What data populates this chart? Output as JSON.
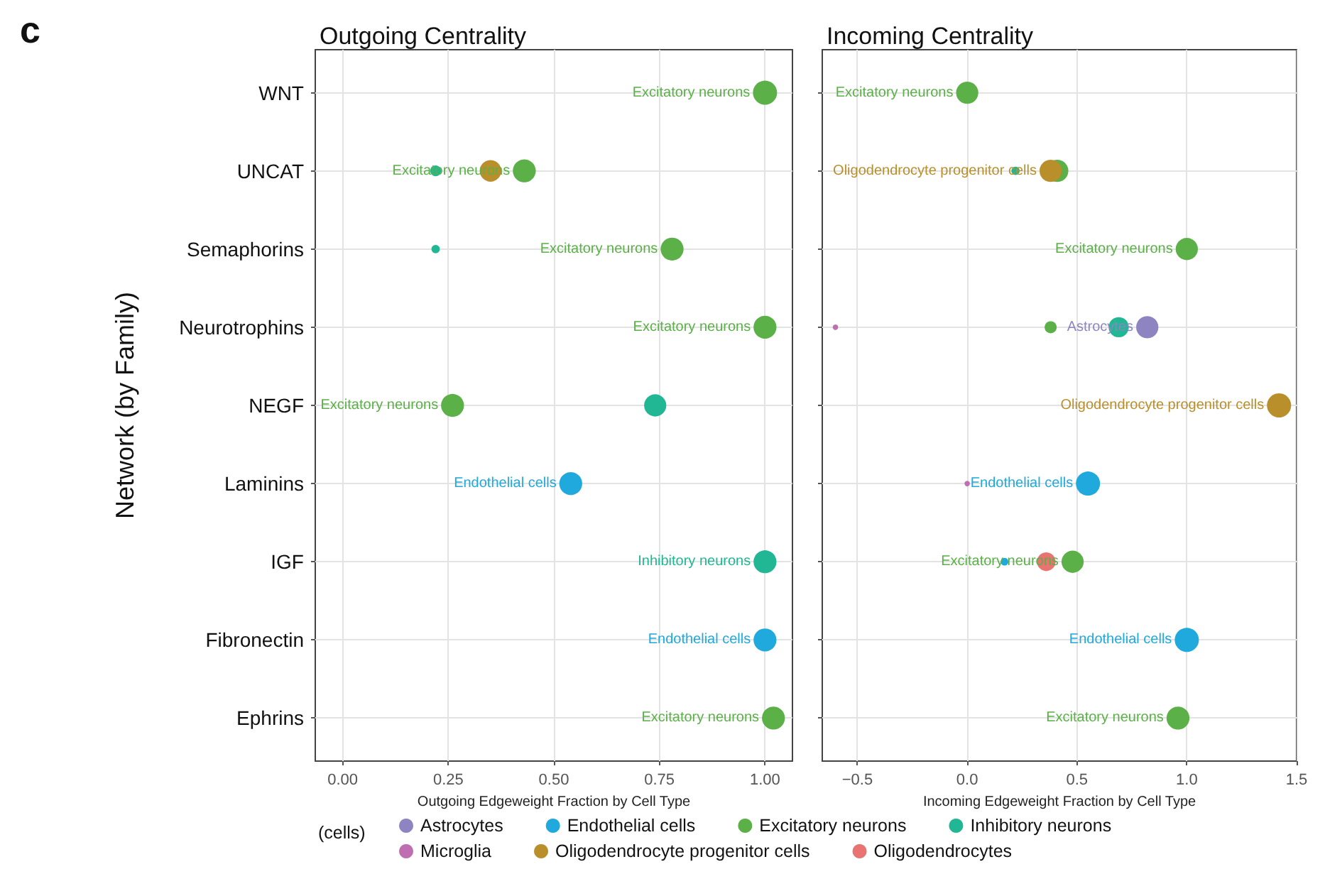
{
  "chart_data": [
    {
      "type": "bubble",
      "title": "Outgoing Centrality",
      "xlabel": "Outgoing Edgeweight Fraction by Cell Type",
      "ylabel": "Network (by Family)",
      "annotations": [
        "c"
      ],
      "orientation": "horizontal",
      "grid": true,
      "marker": "circle",
      "categories": [
        "WNT",
        "UNCAT",
        "Semaphorins",
        "Neurotrophins",
        "NEGF",
        "Laminins",
        "IGF",
        "Fibronectin",
        "Ephrins"
      ],
      "xlim": [
        -0.065,
        1.065
      ],
      "xticks": [
        {
          "value": 0,
          "label": "0.00"
        },
        {
          "value": 0.25,
          "label": "0.25"
        },
        {
          "value": 0.5,
          "label": "0.50"
        },
        {
          "value": 0.75,
          "label": "0.75"
        },
        {
          "value": 1,
          "label": "1.00"
        }
      ],
      "series": [
        {
          "color": "#20a9dc",
          "values": [
            null,
            null,
            null,
            null,
            null,
            0.54,
            null,
            1.0,
            null
          ],
          "sizes": [
            null,
            null,
            null,
            null,
            null,
            0.9,
            null,
            0.9,
            null
          ],
          "value_labels": [
            null,
            null,
            null,
            null,
            null,
            "Endothelial cells",
            null,
            "Endothelial cells",
            null
          ]
        },
        {
          "color": "#5bb048",
          "values": [
            1.0,
            0.43,
            0.78,
            1.0,
            0.26,
            null,
            null,
            null,
            1.02
          ],
          "sizes": [
            1,
            0.9,
            0.9,
            0.9,
            0.9,
            null,
            null,
            null,
            0.9
          ],
          "value_labels": [
            "Excitatory neurons",
            "Excitatory neurons",
            "Excitatory neurons",
            "Excitatory neurons",
            "Excitatory neurons",
            null,
            null,
            null,
            "Excitatory neurons"
          ]
        },
        {
          "color": "#21b794",
          "values": [
            null,
            0.22,
            0.22,
            null,
            0.74,
            null,
            1.0,
            null,
            null
          ],
          "sizes": [
            null,
            0.2,
            0.12,
            null,
            0.85,
            null,
            0.9,
            null,
            null
          ],
          "value_labels": [
            null,
            null,
            null,
            null,
            null,
            null,
            "Inhibitory neurons",
            null,
            null
          ]
        },
        {
          "color": "#b98f2c",
          "values": [
            null,
            0.35,
            null,
            null,
            null,
            null,
            null,
            null,
            null
          ],
          "sizes": [
            null,
            0.8,
            null,
            null,
            null,
            null,
            null,
            null,
            null
          ]
        }
      ]
    },
    {
      "type": "bubble",
      "title": "Incoming Centrality",
      "xlabel": "Incoming Edgeweight Fraction by Cell Type",
      "legend": "bottom",
      "legend_title": "(cells)",
      "orientation": "horizontal",
      "grid": true,
      "marker": "circle",
      "tick_labels": "x",
      "xlim": [
        -0.66,
        1.5
      ],
      "xticks": [
        {
          "value": -0.5,
          "label": "−0.5"
        },
        {
          "value": 0,
          "label": "0.0"
        },
        {
          "value": 0.5,
          "label": "0.5"
        },
        {
          "value": 1,
          "label": "1.0"
        },
        {
          "value": 1.5,
          "label": "1.5"
        }
      ],
      "series": [
        {
          "name": "Astrocytes",
          "color": "#8f84c2",
          "values": [
            null,
            null,
            null,
            0.82,
            null,
            null,
            null,
            null,
            null
          ],
          "sizes": [
            null,
            null,
            null,
            0.85,
            null,
            null,
            null,
            null,
            null
          ],
          "value_labels": [
            null,
            null,
            null,
            "Astrocytes",
            null,
            null,
            null,
            null,
            null
          ]
        },
        {
          "name": "Endothelial cells",
          "color": "#20a9dc",
          "values": [
            null,
            null,
            null,
            null,
            null,
            0.55,
            0.17,
            1.0,
            null
          ],
          "sizes": [
            null,
            null,
            null,
            null,
            null,
            1,
            0.1,
            1,
            null
          ],
          "value_labels": [
            null,
            null,
            null,
            null,
            null,
            "Endothelial cells",
            null,
            "Endothelial cells",
            null
          ]
        },
        {
          "name": "Excitatory neurons",
          "color": "#5bb048",
          "values": [
            0.0,
            0.41,
            1.0,
            0.38,
            null,
            null,
            0.48,
            null,
            0.96
          ],
          "sizes": [
            0.85,
            0.85,
            0.85,
            0.25,
            null,
            null,
            0.85,
            null,
            0.9
          ],
          "value_labels": [
            "Excitatory neurons",
            null,
            "Excitatory neurons",
            null,
            null,
            null,
            "Excitatory neurons",
            null,
            "Excitatory neurons"
          ]
        },
        {
          "name": "Inhibitory neurons",
          "color": "#21b794",
          "values": [
            null,
            0.22,
            null,
            0.69,
            null,
            null,
            null,
            null,
            null
          ],
          "sizes": [
            null,
            0.12,
            null,
            0.7,
            null,
            null,
            null,
            null,
            null
          ]
        },
        {
          "name": "Microglia",
          "color": "#bf6fb1",
          "values": [
            null,
            null,
            null,
            -0.6,
            null,
            0.0,
            null,
            null,
            null
          ],
          "sizes": [
            null,
            null,
            null,
            0.05,
            null,
            0.05,
            null,
            null,
            null
          ]
        },
        {
          "name": "Oligodendrocyte progenitor cells",
          "color": "#b98f2c",
          "values": [
            null,
            0.38,
            null,
            null,
            1.42,
            null,
            null,
            null,
            null
          ],
          "sizes": [
            null,
            0.85,
            null,
            null,
            1,
            null,
            null,
            null,
            null
          ],
          "value_labels": [
            null,
            "Oligodendrocyte progenitor cells",
            null,
            null,
            "Oligodendrocyte progenitor cells",
            null,
            null,
            null,
            null
          ]
        },
        {
          "name": "Oligodendrocytes",
          "color": "#e87370",
          "values": [
            null,
            null,
            null,
            null,
            null,
            null,
            0.36,
            null,
            null
          ],
          "sizes": [
            null,
            null,
            null,
            null,
            null,
            null,
            0.6,
            null,
            null
          ]
        }
      ]
    }
  ]
}
